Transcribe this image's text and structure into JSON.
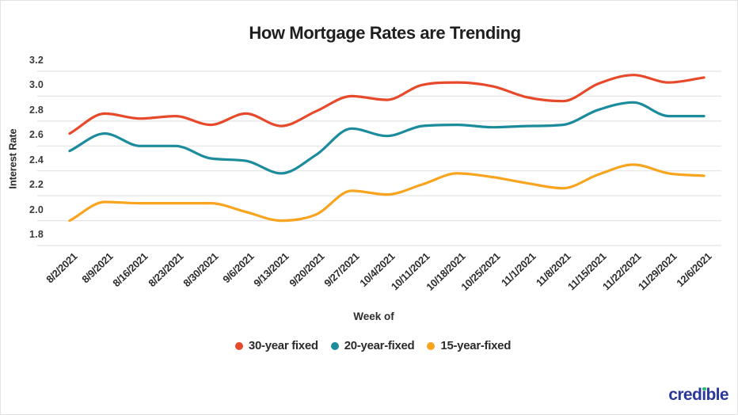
{
  "chart_data": {
    "type": "line",
    "title": "How Mortgage Rates are Trending",
    "xlabel": "Week of",
    "ylabel": "Interest Rate",
    "ylim": [
      1.8,
      3.2
    ],
    "yticks": [
      "1.8",
      "2.0",
      "2.2",
      "2.4",
      "2.6",
      "2.8",
      "3.0",
      "3.2"
    ],
    "grid": "horizontal-only",
    "legend_position": "bottom-center",
    "categories": [
      "8/2/2021",
      "8/9/2021",
      "8/16/2021",
      "8/23/2021",
      "8/30/2021",
      "9/6/2021",
      "9/13/2021",
      "9/20/2021",
      "9/27/2021",
      "10/4/2021",
      "10/11/2021",
      "10/18/2021",
      "10/25/2021",
      "11/1/2021",
      "11/8/2021",
      "11/15/2021",
      "11/22/2021",
      "11/29/2021",
      "12/6/2021"
    ],
    "series": [
      {
        "name": "30-year fixed",
        "color": "#E7492B",
        "values": [
          2.7,
          2.86,
          2.82,
          2.84,
          2.77,
          2.86,
          2.76,
          2.88,
          3.0,
          2.97,
          3.09,
          3.11,
          3.08,
          2.99,
          2.96,
          3.1,
          3.17,
          3.11,
          3.15
        ]
      },
      {
        "name": "20-year-fixed",
        "color": "#1C8C9D",
        "values": [
          2.56,
          2.7,
          2.6,
          2.6,
          2.5,
          2.48,
          2.38,
          2.53,
          2.74,
          2.68,
          2.76,
          2.77,
          2.75,
          2.76,
          2.77,
          2.89,
          2.95,
          2.84,
          2.84
        ]
      },
      {
        "name": "15-year-fixed",
        "color": "#F9A41F",
        "values": [
          2.0,
          2.15,
          2.14,
          2.14,
          2.14,
          2.07,
          2.0,
          2.05,
          2.24,
          2.21,
          2.29,
          2.38,
          2.35,
          2.3,
          2.26,
          2.37,
          2.45,
          2.38,
          2.36
        ]
      }
    ]
  },
  "brand": {
    "logo_text": "credible",
    "navy": "#2B389B",
    "green": "#27C06A"
  },
  "colors": {
    "grid": "#E4E4E4",
    "background": "#FFFFFF",
    "text": "#2B2B2B",
    "title": "#1F1F1F"
  }
}
